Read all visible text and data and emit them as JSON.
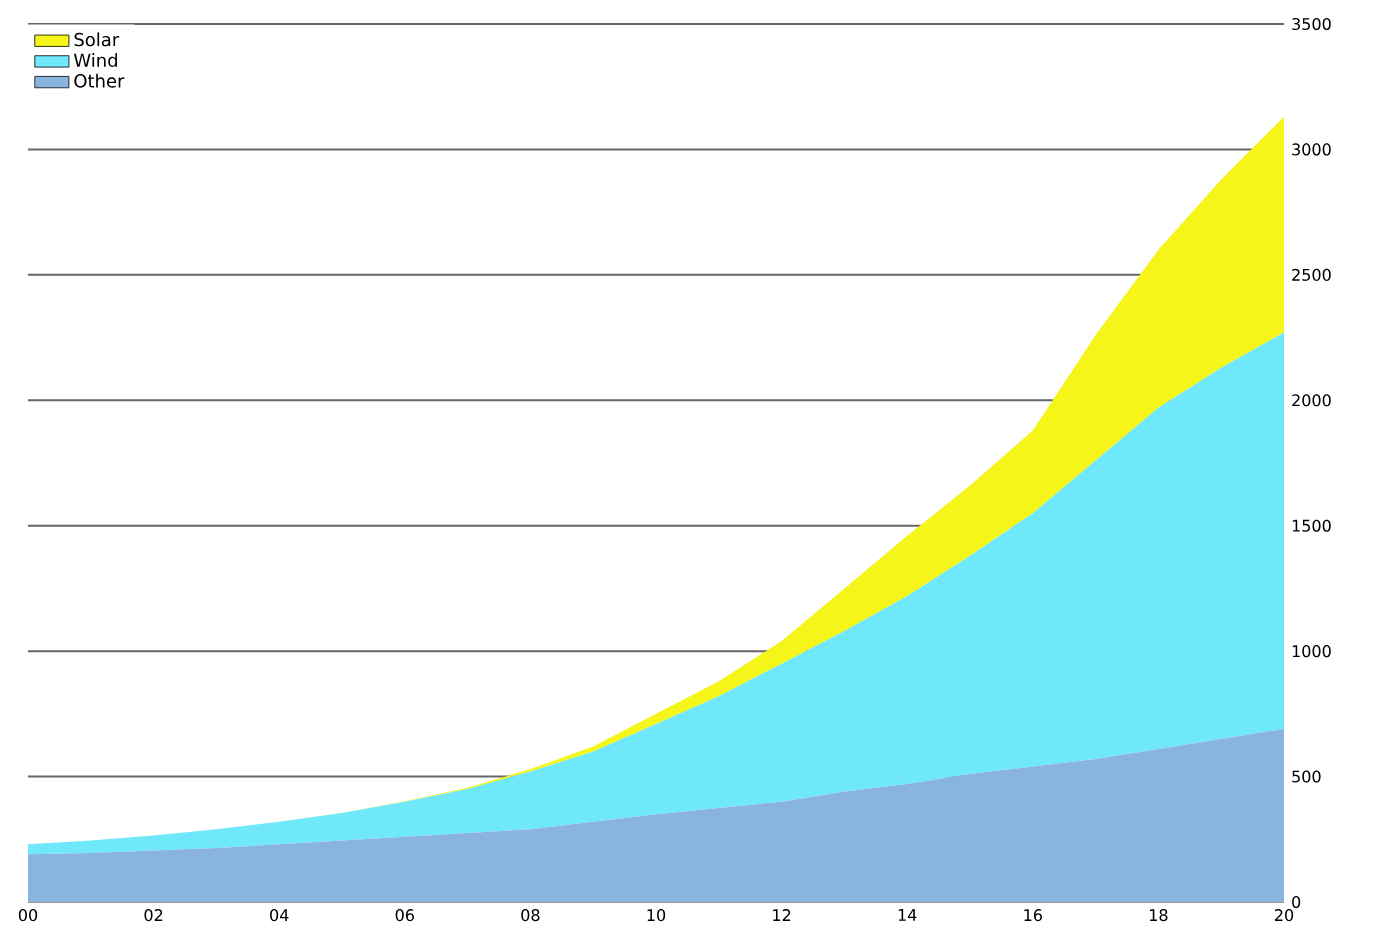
{
  "chart_data": {
    "type": "area",
    "stacked": true,
    "x": [
      0,
      1,
      2,
      3,
      4,
      5,
      6,
      7,
      8,
      9,
      10,
      11,
      12,
      13,
      14,
      15,
      16,
      17,
      18,
      19,
      20
    ],
    "series": [
      {
        "name": "Other",
        "color": "#8ab4e0",
        "values": [
          190,
          195,
          205,
          215,
          230,
          245,
          260,
          275,
          290,
          320,
          350,
          375,
          400,
          440,
          470,
          510,
          540,
          570,
          610,
          650,
          690
        ]
      },
      {
        "name": "Wind",
        "color": "#6ee8fa",
        "values": [
          40,
          50,
          60,
          75,
          90,
          110,
          140,
          175,
          230,
          280,
          360,
          445,
          550,
          640,
          750,
          870,
          1010,
          1190,
          1360,
          1480,
          1580
        ]
      },
      {
        "name": "Solar",
        "color": "#f5f51a",
        "values": [
          0,
          0,
          0,
          0,
          0,
          1,
          2,
          5,
          10,
          20,
          40,
          60,
          90,
          170,
          240,
          280,
          330,
          500,
          630,
          750,
          860
        ]
      }
    ],
    "xlim": [
      0,
      20
    ],
    "xticks": [
      {
        "value": 0,
        "label": "00"
      },
      {
        "value": 2,
        "label": "02"
      },
      {
        "value": 4,
        "label": "04"
      },
      {
        "value": 6,
        "label": "06"
      },
      {
        "value": 8,
        "label": "08"
      },
      {
        "value": 10,
        "label": "10"
      },
      {
        "value": 12,
        "label": "12"
      },
      {
        "value": 14,
        "label": "14"
      },
      {
        "value": 16,
        "label": "16"
      },
      {
        "value": 18,
        "label": "18"
      },
      {
        "value": 20,
        "label": "20"
      }
    ],
    "ylim": [
      0,
      3500
    ],
    "yticks": [
      0,
      500,
      1000,
      1500,
      2000,
      2500,
      3000,
      3500
    ],
    "grid": "y",
    "legend": "top left"
  }
}
